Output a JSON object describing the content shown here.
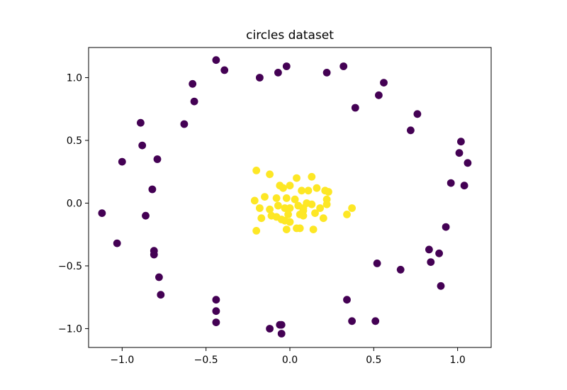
{
  "chart_data": {
    "type": "scatter",
    "title": "circles dataset",
    "xlabel": "",
    "ylabel": "",
    "xlim": [
      -1.2,
      1.2
    ],
    "ylim": [
      -1.15,
      1.24
    ],
    "grid": false,
    "x_ticks": [
      -1.0,
      -0.5,
      0.0,
      0.5,
      1.0
    ],
    "x_tick_labels": [
      "−1.0",
      "−0.5",
      "0.0",
      "0.5",
      "1.0"
    ],
    "y_ticks": [
      -1.0,
      -0.5,
      0.0,
      0.5,
      1.0
    ],
    "y_tick_labels": [
      "−1.0",
      "−0.5",
      "0.0",
      "0.5",
      "1.0"
    ],
    "series": [
      {
        "color": "#440154",
        "points": [
          [
            -0.44,
            1.14
          ],
          [
            -0.39,
            1.06
          ],
          [
            -0.18,
            1.0
          ],
          [
            -0.07,
            1.04
          ],
          [
            -0.02,
            1.09
          ],
          [
            0.22,
            1.04
          ],
          [
            0.32,
            1.09
          ],
          [
            0.56,
            0.96
          ],
          [
            0.53,
            0.86
          ],
          [
            0.39,
            0.76
          ],
          [
            0.76,
            0.71
          ],
          [
            0.72,
            0.58
          ],
          [
            1.02,
            0.49
          ],
          [
            1.01,
            0.4
          ],
          [
            1.06,
            0.32
          ],
          [
            0.96,
            0.16
          ],
          [
            1.04,
            0.14
          ],
          [
            -0.58,
            0.95
          ],
          [
            -0.57,
            0.81
          ],
          [
            -0.63,
            0.63
          ],
          [
            -0.89,
            0.64
          ],
          [
            -0.88,
            0.46
          ],
          [
            -0.79,
            0.35
          ],
          [
            -1.0,
            0.33
          ],
          [
            -0.82,
            0.11
          ],
          [
            -1.12,
            -0.08
          ],
          [
            -0.86,
            -0.1
          ],
          [
            -1.03,
            -0.32
          ],
          [
            -0.81,
            -0.38
          ],
          [
            -0.81,
            -0.41
          ],
          [
            -0.78,
            -0.59
          ],
          [
            -0.77,
            -0.73
          ],
          [
            -0.44,
            -0.77
          ],
          [
            -0.44,
            -0.86
          ],
          [
            -0.44,
            -0.95
          ],
          [
            -0.12,
            -1.0
          ],
          [
            -0.06,
            -0.97
          ],
          [
            -0.05,
            -0.97
          ],
          [
            -0.05,
            -1.04
          ],
          [
            0.34,
            -0.77
          ],
          [
            0.37,
            -0.94
          ],
          [
            0.51,
            -0.94
          ],
          [
            0.52,
            -0.48
          ],
          [
            0.66,
            -0.53
          ],
          [
            0.83,
            -0.37
          ],
          [
            0.84,
            -0.47
          ],
          [
            0.89,
            -0.4
          ],
          [
            0.9,
            -0.66
          ],
          [
            0.93,
            -0.19
          ]
        ]
      },
      {
        "color": "#fde725",
        "points": [
          [
            -0.2,
            0.26
          ],
          [
            -0.12,
            0.23
          ],
          [
            0.04,
            0.2
          ],
          [
            0.13,
            0.21
          ],
          [
            -0.06,
            0.14
          ],
          [
            -0.04,
            0.12
          ],
          [
            0.0,
            0.14
          ],
          [
            0.07,
            0.1
          ],
          [
            0.11,
            0.1
          ],
          [
            0.16,
            0.12
          ],
          [
            0.21,
            0.1
          ],
          [
            0.23,
            0.09
          ],
          [
            -0.15,
            0.05
          ],
          [
            -0.21,
            0.02
          ],
          [
            -0.08,
            0.04
          ],
          [
            -0.02,
            0.04
          ],
          [
            0.03,
            0.03
          ],
          [
            0.22,
            0.03
          ],
          [
            -0.18,
            -0.04
          ],
          [
            -0.07,
            -0.02
          ],
          [
            -0.03,
            -0.04
          ],
          [
            0.0,
            -0.04
          ],
          [
            0.05,
            -0.02
          ],
          [
            0.08,
            -0.04
          ],
          [
            0.13,
            -0.01
          ],
          [
            0.18,
            -0.04
          ],
          [
            0.22,
            -0.01
          ],
          [
            0.37,
            -0.04
          ],
          [
            0.34,
            -0.09
          ],
          [
            -0.11,
            -0.1
          ],
          [
            -0.08,
            -0.11
          ],
          [
            -0.05,
            -0.13
          ],
          [
            -0.01,
            -0.09
          ],
          [
            0.06,
            -0.09
          ],
          [
            0.08,
            -0.1
          ],
          [
            0.15,
            -0.08
          ],
          [
            0.2,
            -0.12
          ],
          [
            -0.17,
            -0.12
          ],
          [
            -0.03,
            -0.14
          ],
          [
            0.0,
            -0.15
          ],
          [
            -0.2,
            -0.22
          ],
          [
            -0.02,
            -0.21
          ],
          [
            0.04,
            -0.2
          ],
          [
            0.06,
            -0.2
          ],
          [
            0.14,
            -0.21
          ],
          [
            0.08,
            -0.06
          ],
          [
            0.1,
            0.0
          ],
          [
            -0.12,
            -0.05
          ]
        ]
      }
    ]
  }
}
